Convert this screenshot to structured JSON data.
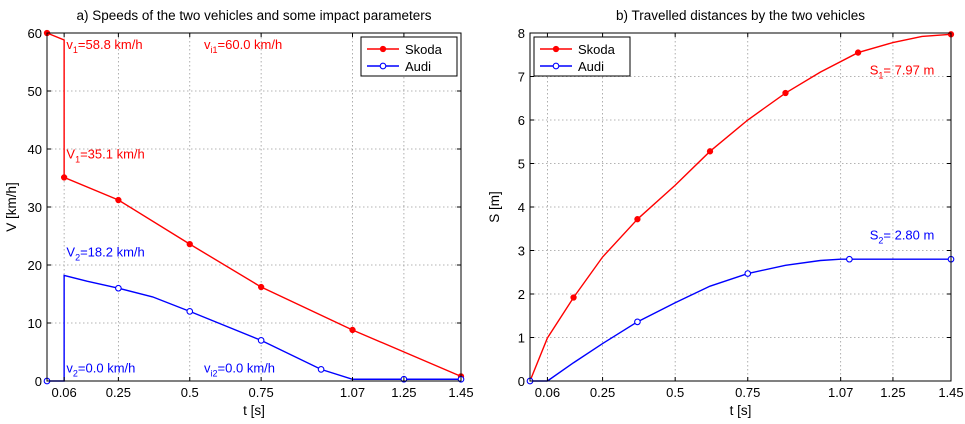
{
  "chart_data": [
    {
      "type": "line",
      "title": "a) Speeds of the two vehicles and some impact parameters",
      "xlabel": "t [s]",
      "ylabel": "V [km/h]",
      "xlim": [
        0,
        1.45
      ],
      "ylim": [
        0,
        60
      ],
      "xticks": [
        0.06,
        0.25,
        0.5,
        0.75,
        1.07,
        1.25,
        1.45
      ],
      "yticks": [
        0,
        10,
        20,
        30,
        40,
        50,
        60
      ],
      "grid": true,
      "legend_position": "top-right",
      "series": [
        {
          "name": "Skoda",
          "color": "#ff0000",
          "marker": "filled-circle",
          "points": [
            [
              0,
              60
            ],
            [
              0.06,
              58.8
            ],
            [
              0.06,
              35.1
            ],
            [
              0.25,
              31.2
            ],
            [
              0.5,
              23.6
            ],
            [
              0.75,
              16.2
            ],
            [
              1.07,
              8.8
            ],
            [
              1.45,
              0.8
            ]
          ],
          "markers": [
            [
              0,
              60
            ],
            [
              0.06,
              35.1
            ],
            [
              0.25,
              31.2
            ],
            [
              0.5,
              23.6
            ],
            [
              0.75,
              16.2
            ],
            [
              1.07,
              8.8
            ],
            [
              1.45,
              0.8
            ]
          ]
        },
        {
          "name": "Audi",
          "color": "#0000ff",
          "marker": "open-circle",
          "points": [
            [
              0,
              0
            ],
            [
              0.06,
              0
            ],
            [
              0.06,
              18.2
            ],
            [
              0.14,
              17.2
            ],
            [
              0.25,
              16.0
            ],
            [
              0.37,
              14.5
            ],
            [
              0.5,
              12.0
            ],
            [
              0.75,
              7.0
            ],
            [
              0.96,
              2.0
            ],
            [
              1.07,
              0.3
            ],
            [
              1.25,
              0.3
            ],
            [
              1.45,
              0.3
            ]
          ],
          "markers": [
            [
              0,
              0
            ],
            [
              0.25,
              16.0
            ],
            [
              0.5,
              12.0
            ],
            [
              0.75,
              7.0
            ],
            [
              0.96,
              2.0
            ],
            [
              1.25,
              0.3
            ],
            [
              1.45,
              0.3
            ]
          ]
        }
      ],
      "annotations": [
        {
          "main": "v",
          "sub": "1",
          "rest": "=58.8 km/h",
          "x": 0.068,
          "y": 57.2,
          "color": "#ff0000"
        },
        {
          "main": "v",
          "sub": "i1",
          "rest": "=60.0 km/h",
          "x": 0.55,
          "y": 57.2,
          "color": "#ff0000"
        },
        {
          "main": "V",
          "sub": "1",
          "rest": "=35.1 km/h",
          "x": 0.068,
          "y": 38.4,
          "color": "#ff0000"
        },
        {
          "main": "V",
          "sub": "2",
          "rest": "=18.2 km/h",
          "x": 0.068,
          "y": 21.5,
          "color": "#0000ff"
        },
        {
          "main": "v",
          "sub": "2",
          "rest": "=0.0 km/h",
          "x": 0.068,
          "y": 1.5,
          "color": "#0000ff"
        },
        {
          "main": "v",
          "sub": "i2",
          "rest": "=0.0 km/h",
          "x": 0.55,
          "y": 1.5,
          "color": "#0000ff"
        }
      ]
    },
    {
      "type": "line",
      "title": "b) Travelled distances by the two vehicles",
      "xlabel": "t [s]",
      "ylabel": "S [m]",
      "xlim": [
        0,
        1.45
      ],
      "ylim": [
        0,
        8
      ],
      "xticks": [
        0.06,
        0.25,
        0.5,
        0.75,
        1.07,
        1.25,
        1.45
      ],
      "yticks": [
        0,
        1,
        2,
        3,
        4,
        5,
        6,
        7,
        8
      ],
      "grid": true,
      "legend_position": "top-left",
      "series": [
        {
          "name": "Skoda",
          "color": "#ff0000",
          "marker": "filled-circle",
          "points": [
            [
              0,
              0
            ],
            [
              0.06,
              0.99
            ],
            [
              0.15,
              1.92
            ],
            [
              0.25,
              2.85
            ],
            [
              0.37,
              3.72
            ],
            [
              0.5,
              4.5
            ],
            [
              0.62,
              5.28
            ],
            [
              0.75,
              6.0
            ],
            [
              0.88,
              6.62
            ],
            [
              1.0,
              7.1
            ],
            [
              1.13,
              7.55
            ],
            [
              1.25,
              7.78
            ],
            [
              1.35,
              7.92
            ],
            [
              1.45,
              7.97
            ]
          ],
          "markers": [
            [
              0,
              0
            ],
            [
              0.15,
              1.92
            ],
            [
              0.37,
              3.72
            ],
            [
              0.62,
              5.28
            ],
            [
              0.88,
              6.62
            ],
            [
              1.13,
              7.55
            ],
            [
              1.45,
              7.97
            ]
          ]
        },
        {
          "name": "Audi",
          "color": "#0000ff",
          "marker": "open-circle",
          "points": [
            [
              0,
              0
            ],
            [
              0.06,
              0
            ],
            [
              0.15,
              0.42
            ],
            [
              0.25,
              0.86
            ],
            [
              0.37,
              1.36
            ],
            [
              0.5,
              1.8
            ],
            [
              0.62,
              2.18
            ],
            [
              0.75,
              2.47
            ],
            [
              0.88,
              2.66
            ],
            [
              1.0,
              2.77
            ],
            [
              1.07,
              2.8
            ],
            [
              1.25,
              2.8
            ],
            [
              1.45,
              2.8
            ]
          ],
          "markers": [
            [
              0,
              0
            ],
            [
              0.37,
              1.36
            ],
            [
              0.75,
              2.47
            ],
            [
              1.1,
              2.8
            ],
            [
              1.45,
              2.8
            ]
          ]
        }
      ],
      "annotations": [
        {
          "main": "S",
          "sub": "1",
          "rest": "= 7.97 m",
          "x": 1.17,
          "y": 7.05,
          "color": "#ff0000"
        },
        {
          "main": "S",
          "sub": "2",
          "rest": "= 2.80 m",
          "x": 1.17,
          "y": 3.25,
          "color": "#0000ff"
        }
      ]
    }
  ]
}
